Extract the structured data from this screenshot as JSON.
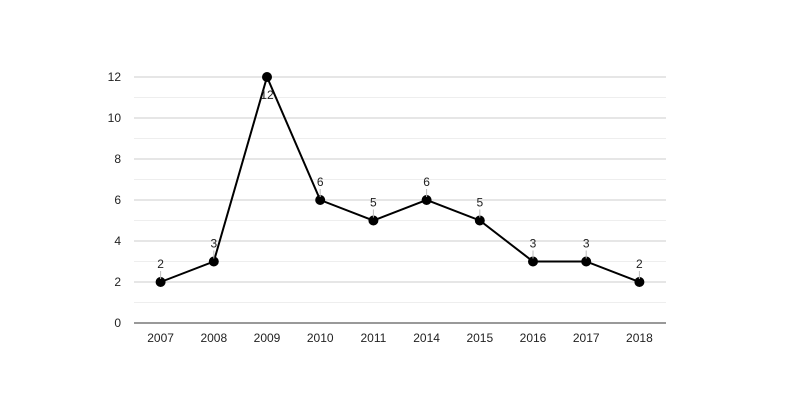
{
  "chart_data": {
    "type": "line",
    "title": "",
    "xlabel": "",
    "ylabel": "",
    "categories": [
      "2007",
      "2008",
      "2009",
      "2010",
      "2011",
      "2014",
      "2015",
      "2016",
      "2017",
      "2018"
    ],
    "series": [
      {
        "values": [
          2,
          3,
          12,
          6,
          5,
          6,
          5,
          3,
          3,
          2
        ]
      }
    ],
    "ylim": [
      0,
      12
    ],
    "yticks": [
      "0",
      "2",
      "4",
      "6",
      "8",
      "10",
      "12"
    ],
    "data_labels": [
      "2",
      "3",
      "12",
      "6",
      "5",
      "6",
      "5",
      "3",
      "3",
      "2"
    ],
    "grid": true,
    "legend": "none",
    "colors": {
      "line": "#000000",
      "marker": "#000000",
      "grid_major": "#cccccc",
      "grid_minor": "#eeeeee",
      "axis": "#333333",
      "text": "#222222"
    }
  }
}
